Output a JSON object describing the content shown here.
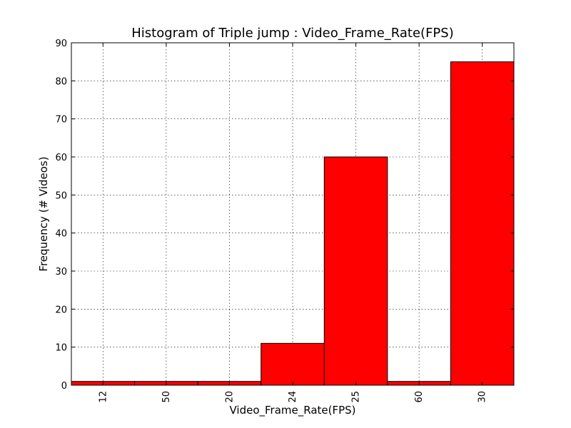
{
  "chart_data": {
    "type": "bar",
    "title": "Histogram of Triple jump : Video_Frame_Rate(FPS)",
    "xlabel": "Video_Frame_Rate(FPS)",
    "ylabel": "Frequency (# Videos)",
    "categories": [
      "12",
      "50",
      "20",
      "24",
      "25",
      "60",
      "30"
    ],
    "values": [
      1,
      1,
      1,
      11,
      60,
      1,
      85
    ],
    "ylim": [
      0,
      90
    ],
    "yticks": [
      0,
      10,
      20,
      30,
      40,
      50,
      60,
      70,
      80,
      90
    ],
    "grid": true,
    "bar_color": "#ff0000",
    "x_tick_rotation": "vertical"
  }
}
